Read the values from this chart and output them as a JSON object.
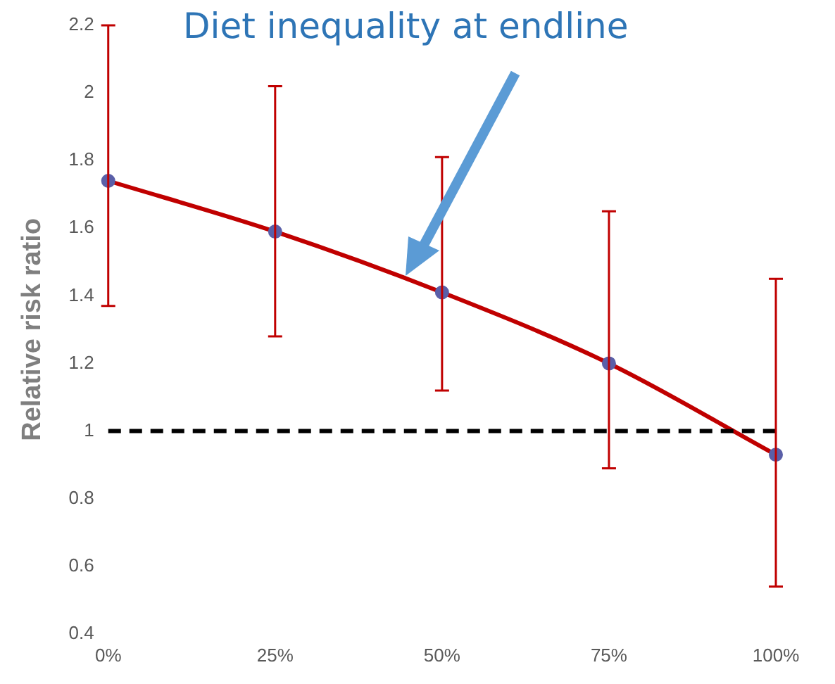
{
  "chart_data": {
    "type": "line",
    "title": "Diet inequality at endline",
    "ylabel": "Relative risk ratio",
    "categories": [
      "0%",
      "25%",
      "50%",
      "75%",
      "100%"
    ],
    "series": [
      {
        "color": "#c00000",
        "values": [
          1.74,
          1.59,
          1.41,
          1.2,
          0.93
        ],
        "errors": [
          [
            1.37,
            2.2
          ],
          [
            1.28,
            2.02
          ],
          [
            1.12,
            1.81
          ],
          [
            0.89,
            1.65
          ],
          [
            0.54,
            1.45
          ]
        ]
      }
    ],
    "ylim": [
      0.4,
      2.2
    ],
    "yticks": [
      0.4,
      0.6,
      0.8,
      1,
      1.2,
      1.4,
      1.6,
      1.8,
      2,
      2.2
    ],
    "grid": false,
    "legend": false,
    "marker": "circle",
    "line_style": "solid",
    "ref_lines": [
      {
        "axis": "y",
        "value": 1,
        "color": "#000000",
        "line_style": "dashed"
      }
    ]
  }
}
